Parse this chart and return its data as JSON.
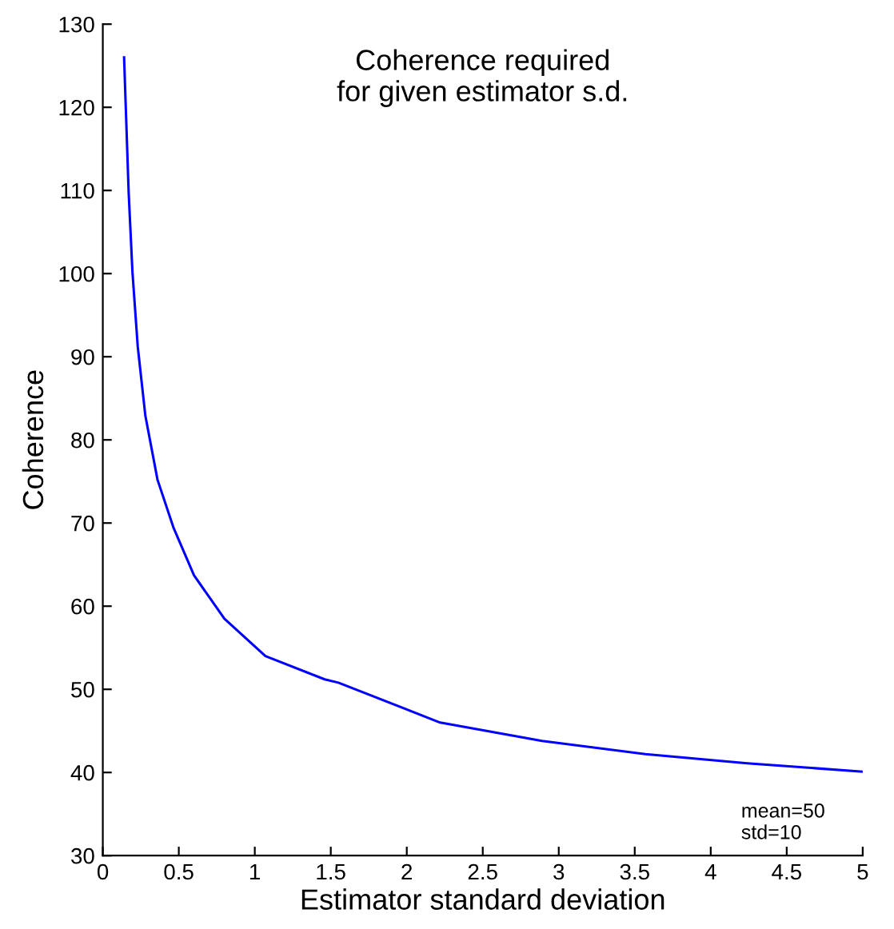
{
  "chart_data": {
    "type": "line",
    "title": "Coherence required\nfor given estimator s.d.",
    "xlabel": "Estimator standard deviation",
    "ylabel": "Coherence",
    "x": [
      0.14,
      0.17,
      0.195,
      0.23,
      0.28,
      0.36,
      0.466,
      0.6,
      0.8,
      1.07,
      1.46,
      1.55,
      2.22,
      2.89,
      3.57,
      4.24,
      5.0
    ],
    "series": [
      {
        "color": "#0000ff",
        "values": [
          126,
          109.8,
          100.2,
          91.2,
          82.9,
          75.2,
          69.4,
          63.7,
          58.5,
          54.0,
          51.2,
          50.8,
          46.0,
          43.8,
          42.2,
          41.1,
          40.1
        ]
      }
    ],
    "xlim": [
      0,
      5
    ],
    "ylim": [
      30,
      130
    ],
    "xticks": [
      0,
      0.5,
      1,
      1.5,
      2,
      2.5,
      3,
      3.5,
      4,
      4.5,
      5
    ],
    "yticks": [
      30,
      40,
      50,
      60,
      70,
      80,
      90,
      100,
      110,
      120,
      130
    ],
    "annotations": [
      "mean=50\nstd=10"
    ],
    "grid": false,
    "legend": false,
    "marker": "none",
    "line_style": "solid"
  }
}
